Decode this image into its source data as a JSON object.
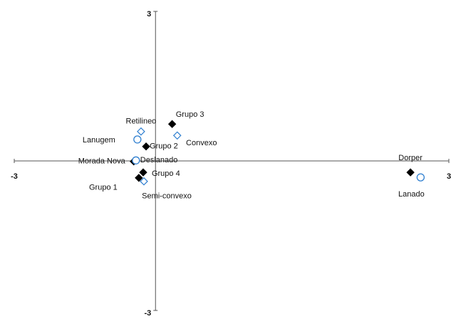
{
  "chart_data": {
    "type": "scatter",
    "xlim": [
      -3,
      3
    ],
    "ylim": [
      -3,
      3
    ],
    "xticks": [
      -3,
      3
    ],
    "yticks": [
      3,
      -3
    ],
    "yaxis_x": -1.05,
    "series": [
      {
        "color": "#000000",
        "marker": "diamond-filled",
        "labels": [
          "Grupo 3",
          "Grupo 2",
          "Morada Nova",
          "Grupo 4",
          "Grupo 1",
          "Dorper"
        ],
        "x": [
          -0.82,
          -1.18,
          -1.35,
          -1.22,
          -1.28,
          2.47
        ],
        "values": [
          0.74,
          0.29,
          -0.01,
          -0.23,
          -0.34,
          -0.23
        ]
      },
      {
        "color": "#2f7fd0",
        "marker": "circle-open",
        "labels": [
          "Lanugem",
          "Deslanado",
          "Lanado"
        ],
        "x": [
          -1.3,
          -1.32,
          2.61
        ],
        "values": [
          0.43,
          0.01,
          -0.33
        ]
      },
      {
        "color": "#2f7fd0",
        "marker": "diamond-open",
        "labels": [
          "Retilineo",
          "Convexo",
          "Semi-convexo"
        ],
        "x": [
          -1.25,
          -0.75,
          -1.21
        ],
        "values": [
          0.59,
          0.51,
          -0.41
        ]
      }
    ]
  }
}
